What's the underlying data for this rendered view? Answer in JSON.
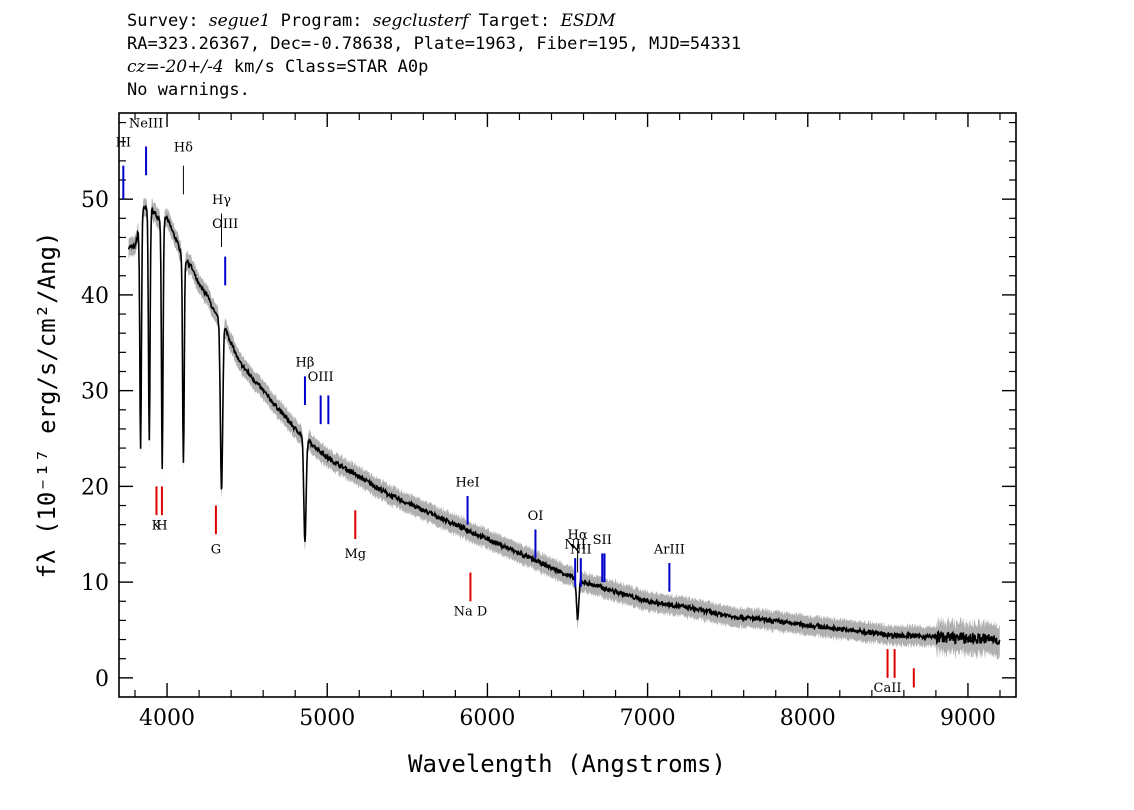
{
  "header": {
    "line1": {
      "survey_label": "Survey: ",
      "survey": "segue1",
      "program_label": " Program: ",
      "program": "segclusterf",
      "target_label": " Target: ",
      "target": "ESDM"
    },
    "line2": "RA=323.26367, Dec=-0.78638, Plate=1963, Fiber=195, MJD=54331",
    "line3": {
      "cz": "cz",
      "cz_value": "=-20+/-4",
      "rest": " km/s Class=STAR A0p"
    },
    "line4": "No warnings."
  },
  "chart_data": {
    "type": "line",
    "xlabel": "Wavelength (Angstroms)",
    "ylabel": "fλ (10⁻¹⁷ erg/s/cm²/Ang)",
    "xlim": [
      3700,
      9300
    ],
    "ylim": [
      -2,
      59
    ],
    "xticks": [
      4000,
      5000,
      6000,
      7000,
      8000,
      9000
    ],
    "yticks": [
      0,
      10,
      20,
      30,
      40,
      50
    ],
    "grid": false,
    "colors": {
      "spectrum": "#000000",
      "error": "#b0b0b0",
      "emission": "#0000cc",
      "absorption": "#dd0000",
      "sky": "#000000"
    },
    "spectrum": {
      "x": [
        3800,
        3850,
        3900,
        3950,
        4000,
        4050,
        4100,
        4150,
        4200,
        4250,
        4300,
        4350,
        4400,
        4450,
        4500,
        4600,
        4700,
        4800,
        4900,
        5000,
        5200,
        5400,
        5600,
        5800,
        6000,
        6200,
        6400,
        6600,
        6800,
        7000,
        7200,
        7500,
        8000,
        8500,
        8900,
        9200
      ],
      "y": [
        45,
        49,
        49,
        48,
        48,
        46,
        44,
        43,
        41,
        40,
        38,
        37,
        35,
        33,
        32,
        30,
        28,
        26,
        24.5,
        23,
        21,
        19,
        17.5,
        16,
        14.5,
        13,
        11.5,
        10,
        9,
        8,
        7.5,
        6.5,
        5.5,
        4.5,
        4.2,
        4
      ],
      "absorption_dips": [
        {
          "x": 3835,
          "y": 24
        },
        {
          "x": 3889,
          "y": 25
        },
        {
          "x": 3970,
          "y": 22
        },
        {
          "x": 4102,
          "y": 22.5
        },
        {
          "x": 4340,
          "y": 19.5
        },
        {
          "x": 4861,
          "y": 14
        },
        {
          "x": 6563,
          "y": 6
        }
      ]
    },
    "lines": [
      {
        "label": "III",
        "x": 3727,
        "y_top": 53.5,
        "y_bottom": 50,
        "kind": "emission",
        "label_y": 55.5
      },
      {
        "label": "NeIII",
        "x": 3869,
        "y_top": 55.5,
        "y_bottom": 52.5,
        "kind": "emission",
        "label_y": 57.5
      },
      {
        "label": "Hδ",
        "x": 4102,
        "y_top": 53.5,
        "y_bottom": 50.5,
        "kind": "sky",
        "label_y": 55
      },
      {
        "label": "Hγ",
        "x": 4340,
        "y_top": 48.5,
        "y_bottom": 45,
        "kind": "sky",
        "label_y": 49.5
      },
      {
        "label": "OIII",
        "x": 4363,
        "y_top": 44,
        "y_bottom": 41,
        "kind": "emission",
        "label_y": 47
      },
      {
        "label": "Hβ",
        "x": 4861,
        "y_top": 31.5,
        "y_bottom": 28.5,
        "kind": "emission",
        "label_y": 32.5
      },
      {
        "label": "OIII",
        "x": 4959,
        "y_top": 29.5,
        "y_bottom": 26.5,
        "kind": "emission",
        "label_y": 31
      },
      {
        "label": "",
        "x": 5007,
        "y_top": 29.5,
        "y_bottom": 26.5,
        "kind": "emission",
        "label_y": 0
      },
      {
        "label": "HeI",
        "x": 5876,
        "y_top": 19,
        "y_bottom": 16,
        "kind": "emission",
        "label_y": 20
      },
      {
        "label": "OI",
        "x": 6300,
        "y_top": 15.5,
        "y_bottom": 12.5,
        "kind": "emission",
        "label_y": 16.5
      },
      {
        "label": "NII",
        "x": 6548,
        "y_top": 12.5,
        "y_bottom": 9.5,
        "kind": "emission",
        "label_y": 13.5
      },
      {
        "label": "Hα",
        "x": 6563,
        "y_top": 14,
        "y_bottom": 11,
        "kind": "sky",
        "label_y": 14.5
      },
      {
        "label": "NII",
        "x": 6583,
        "y_top": 12.5,
        "y_bottom": 9.5,
        "kind": "emission",
        "label_y": 13
      },
      {
        "label": "SII",
        "x": 6717,
        "y_top": 13,
        "y_bottom": 10,
        "kind": "emission",
        "label_y": 14
      },
      {
        "label": "",
        "x": 6731,
        "y_top": 13,
        "y_bottom": 10,
        "kind": "emission",
        "label_y": 0
      },
      {
        "label": "ArIII",
        "x": 7136,
        "y_top": 12,
        "y_bottom": 9,
        "kind": "emission",
        "label_y": 13
      },
      {
        "label": "K",
        "x": 3934,
        "y_top": 20,
        "y_bottom": 17,
        "kind": "absorption",
        "label_y": 15.5
      },
      {
        "label": "H",
        "x": 3968,
        "y_top": 20,
        "y_bottom": 17,
        "kind": "absorption",
        "label_y": 15.5
      },
      {
        "label": "G",
        "x": 4305,
        "y_top": 18,
        "y_bottom": 15,
        "kind": "absorption",
        "label_y": 13
      },
      {
        "label": "Mg",
        "x": 5175,
        "y_top": 17.5,
        "y_bottom": 14.5,
        "kind": "absorption",
        "label_y": 12.5
      },
      {
        "label": "Na D",
        "x": 5894,
        "y_top": 11,
        "y_bottom": 8,
        "kind": "absorption",
        "label_y": 6.5
      },
      {
        "label": "CaII",
        "x": 8498,
        "y_top": 3,
        "y_bottom": 0,
        "kind": "absorption",
        "label_y": -1.5
      },
      {
        "label": "",
        "x": 8542,
        "y_top": 3,
        "y_bottom": 0,
        "kind": "absorption",
        "label_y": 0
      },
      {
        "label": "",
        "x": 8662,
        "y_top": 1,
        "y_bottom": -1,
        "kind": "absorption",
        "label_y": 0
      }
    ]
  }
}
